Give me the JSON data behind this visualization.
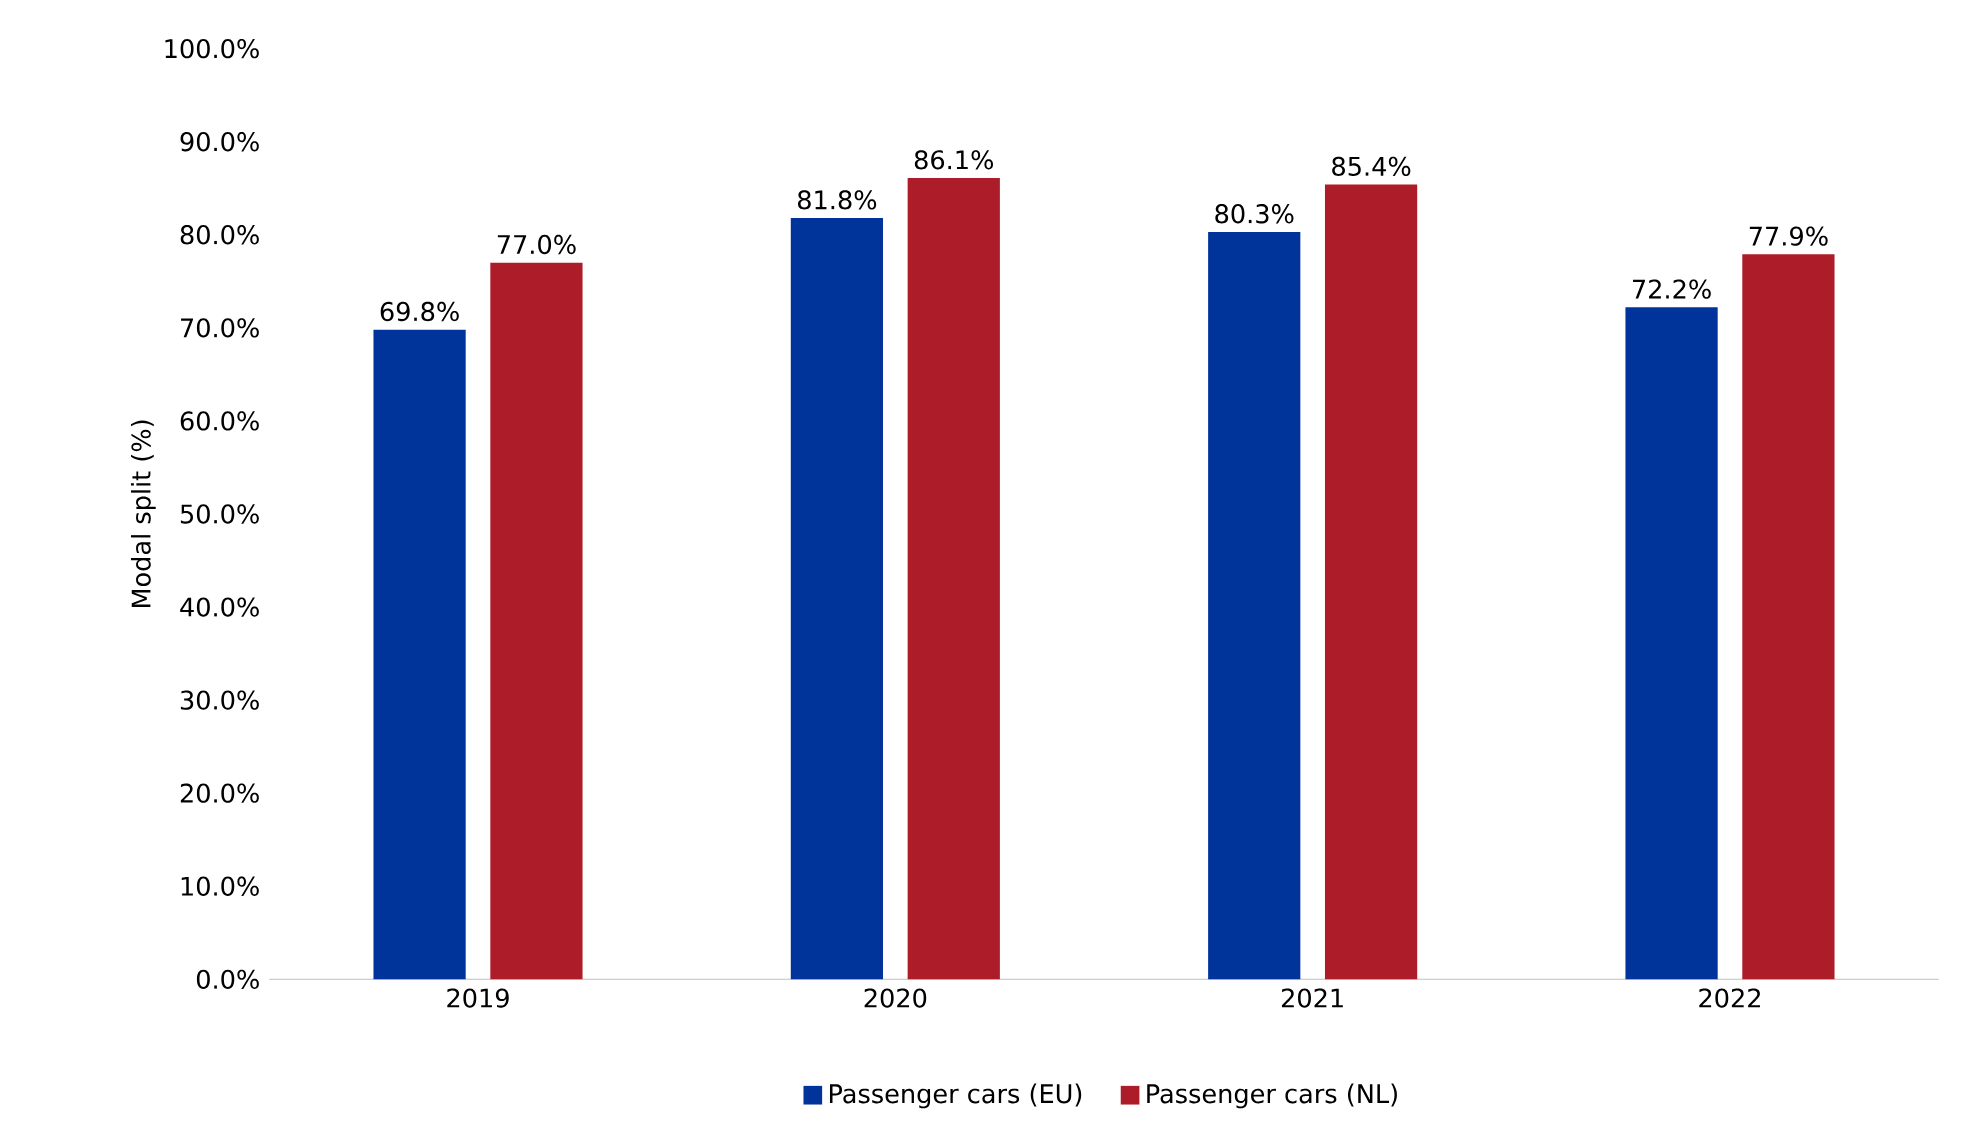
{
  "chart_data": {
    "type": "bar",
    "ylabel": "Modal split (%)",
    "categories": [
      "2019",
      "2020",
      "2021",
      "2022"
    ],
    "series": [
      {
        "name": "Passenger cars (EU)",
        "color": "#00349a",
        "values": [
          69.8,
          81.8,
          80.3,
          72.2
        ],
        "value_labels": [
          "69.8%",
          "81.8%",
          "80.3%",
          "72.2%"
        ]
      },
      {
        "name": "Passenger cars (NL)",
        "color": "#ad1c29",
        "values": [
          77.0,
          86.1,
          85.4,
          77.9
        ],
        "value_labels": [
          "77.0%",
          "86.1%",
          "85.4%",
          "77.9%"
        ]
      }
    ],
    "ylim": [
      0,
      100
    ],
    "yticks": [
      {
        "value": 0,
        "label": "0.0%"
      },
      {
        "value": 10,
        "label": "10.0%"
      },
      {
        "value": 20,
        "label": "20.0%"
      },
      {
        "value": 30,
        "label": "30.0%"
      },
      {
        "value": 40,
        "label": "40.0%"
      },
      {
        "value": 50,
        "label": "50.0%"
      },
      {
        "value": 60,
        "label": "60.0%"
      },
      {
        "value": 70,
        "label": "70.0%"
      },
      {
        "value": 80,
        "label": "80.0%"
      },
      {
        "value": 90,
        "label": "90.0%"
      },
      {
        "value": 100,
        "label": "100.0%"
      }
    ],
    "grid": false,
    "legend": "bottom"
  }
}
